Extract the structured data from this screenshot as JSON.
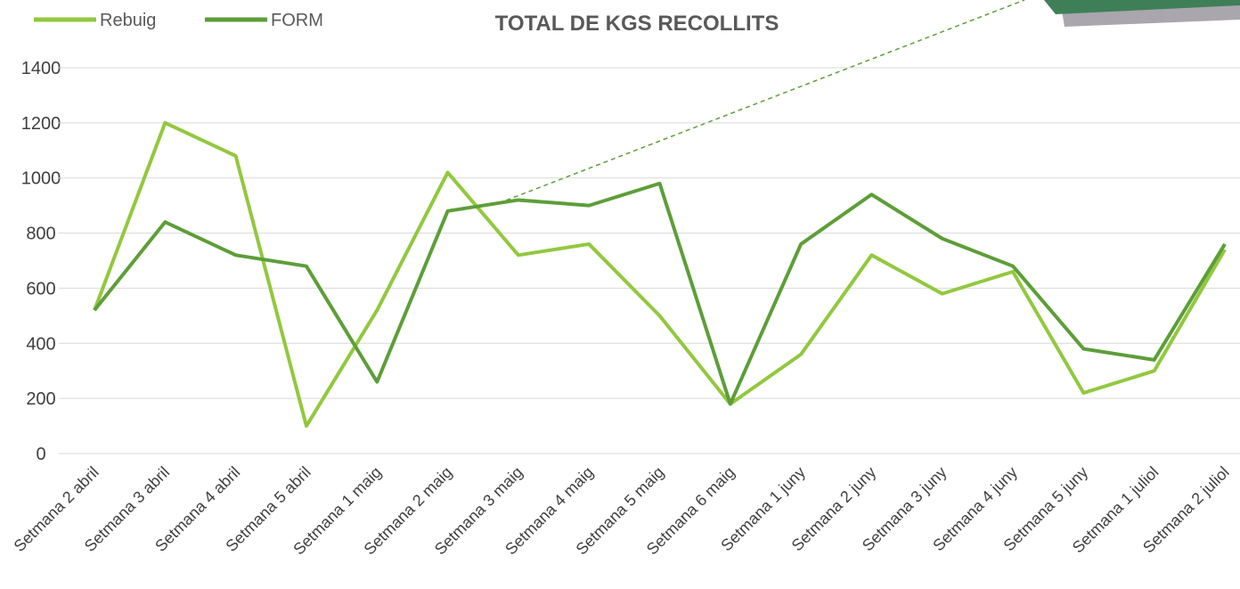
{
  "chart_data": {
    "type": "line",
    "title": "TOTAL DE KGS RECOLLITS",
    "categories": [
      "Setmana 2 abril",
      "Setmana 3 abril",
      "Setmana 4 abril",
      "Setmana 5 abril",
      "Setmana 1 maig",
      "Setmana 2 maig",
      "Setmana 3 maig",
      "Setmana 4 maig",
      "Setmana 5 maig",
      "Setmana 6 maig",
      "Setmana 1 juny",
      "Setmana 2 juny",
      "Setmana 3 juny",
      "Setmana 4 juny",
      "Setmana 5 juny",
      "Setmana 1 juliol",
      "Setmana 2 juliol"
    ],
    "series": [
      {
        "name": "Rebuig",
        "color": "#92c83e",
        "values": [
          520,
          1200,
          1080,
          100,
          520,
          1020,
          720,
          760,
          500,
          180,
          360,
          720,
          580,
          660,
          220,
          300,
          740
        ]
      },
      {
        "name": "FORM",
        "color": "#5d9e38",
        "values": [
          520,
          840,
          720,
          680,
          260,
          880,
          920,
          900,
          980,
          180,
          760,
          940,
          780,
          680,
          380,
          340,
          760
        ]
      }
    ],
    "ylim": [
      0,
      1400
    ],
    "yticks": [
      0,
      200,
      400,
      600,
      800,
      1000,
      1200,
      1400
    ],
    "grid": true
  }
}
